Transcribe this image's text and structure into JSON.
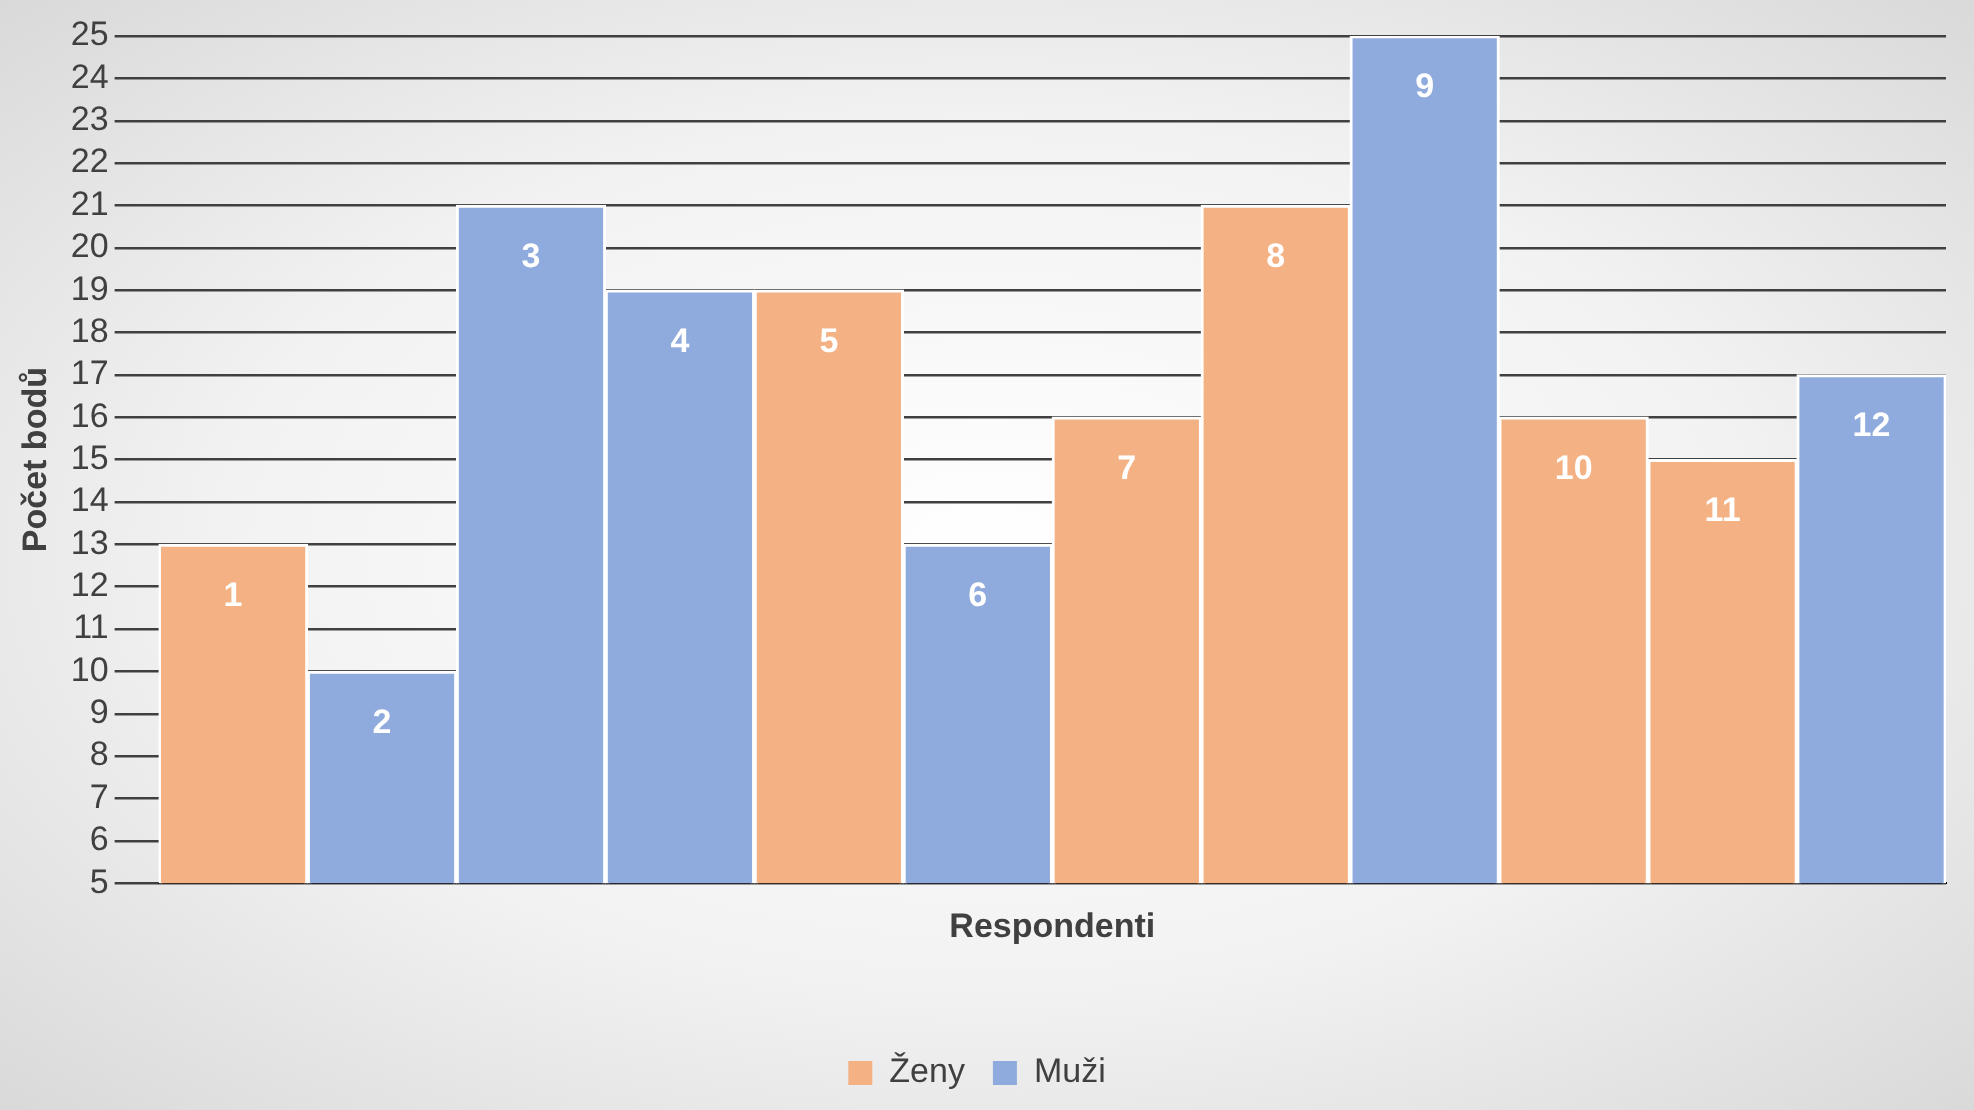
{
  "chart_data": {
    "type": "bar",
    "ylabel": "Počet bodů",
    "xlabel": "Respondenti",
    "categories": [
      "1",
      "2",
      "3",
      "4",
      "5",
      "6",
      "7",
      "8",
      "9",
      "10",
      "11",
      "12"
    ],
    "series": [
      {
        "name": "Ženy",
        "color": "#f4b183",
        "values": [
          13,
          null,
          null,
          null,
          19,
          null,
          16,
          21,
          null,
          16,
          15,
          null
        ]
      },
      {
        "name": "Muži",
        "color": "#8faadc",
        "values": [
          null,
          10,
          21,
          19,
          null,
          13,
          null,
          null,
          25,
          null,
          null,
          17
        ]
      }
    ],
    "ylim": [
      5,
      25
    ],
    "yticks": [
      5,
      6,
      7,
      8,
      9,
      10,
      11,
      12,
      13,
      14,
      15,
      16,
      17,
      18,
      19,
      20,
      21,
      22,
      23,
      24,
      25
    ],
    "grid": "y",
    "legend": "bottom"
  }
}
